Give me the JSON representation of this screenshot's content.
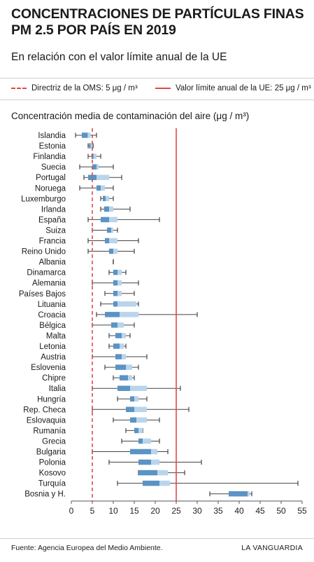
{
  "title": "CONCENTRACIONES DE PARTÍCULAS FINAS PM 2.5 POR PAÍS EN 2019",
  "subtitle": "En relación con el valor límite anual de la UE",
  "legend": {
    "who_label": "Directriz de la OMS: 5 μg / m³",
    "eu_label": "Valor límite anual de la UE: 25 μg / m³"
  },
  "colors": {
    "limit_line": "#e04848",
    "box_dark": "#5b93c4",
    "box_light": "#b9d5ec",
    "whisker": "#444444"
  },
  "source": "Fuente: Agencia Europea del Medio Ambiente.",
  "brand": "LA VANGUARDIA",
  "chart_data": {
    "type": "box",
    "title": "Concentración media de contaminación del aire (μg / m³)",
    "xlim": [
      0,
      55
    ],
    "xticks": [
      0,
      5,
      10,
      15,
      20,
      25,
      30,
      35,
      40,
      45,
      50,
      55
    ],
    "reference_lines": [
      {
        "value": 5,
        "label": "Directriz de la OMS: 5 μg / m³",
        "style": "dashed"
      },
      {
        "value": 25,
        "label": "Valor límite anual de la UE: 25 μg / m³",
        "style": "solid"
      }
    ],
    "categories": [
      "Islandia",
      "Estonia",
      "Finlandia",
      "Suecia",
      "Portugal",
      "Noruega",
      "Luxemburgo",
      "Irlanda",
      "España",
      "Suiza",
      "Francia",
      "Reino Unido",
      "Albania",
      "Dinamarca",
      "Alemania",
      "Países Bajos",
      "Lituania",
      "Croacia",
      "Bélgica",
      "Malta",
      "Letonia",
      "Austria",
      "Eslovenia",
      "Chipre",
      "Italia",
      "Hungría",
      "Rep. Checa",
      "Eslovaquia",
      "Rumanía",
      "Grecia",
      "Bulgaria",
      "Polonia",
      "Kosovo",
      "Turquía",
      "Bosnia y H."
    ],
    "boxes": [
      {
        "min": 1,
        "q1": 2.5,
        "median": 3.9,
        "q3": 4.6,
        "max": 6
      },
      {
        "min": 4,
        "q1": 4.2,
        "median": 4.6,
        "q3": 5,
        "max": 5.2
      },
      {
        "min": 4,
        "q1": 4.8,
        "median": 5.3,
        "q3": 6,
        "max": 7
      },
      {
        "min": 2,
        "q1": 5,
        "median": 6,
        "q3": 6.5,
        "max": 10
      },
      {
        "min": 3,
        "q1": 4,
        "median": 6,
        "q3": 9,
        "max": 12
      },
      {
        "min": 2,
        "q1": 6,
        "median": 7,
        "q3": 8,
        "max": 10
      },
      {
        "min": 7,
        "q1": 7.5,
        "median": 8.2,
        "q3": 9,
        "max": 10
      },
      {
        "min": 7,
        "q1": 7.8,
        "median": 9,
        "q3": 10,
        "max": 14
      },
      {
        "min": 4,
        "q1": 7,
        "median": 9,
        "q3": 11,
        "max": 21
      },
      {
        "min": 5,
        "q1": 8.5,
        "median": 9.5,
        "q3": 10,
        "max": 11
      },
      {
        "min": 4,
        "q1": 8,
        "median": 9,
        "q3": 11,
        "max": 16
      },
      {
        "min": 4,
        "q1": 9,
        "median": 10,
        "q3": 11,
        "max": 15
      },
      {
        "min": 10,
        "q1": 10,
        "median": 10,
        "q3": 10,
        "max": 10
      },
      {
        "min": 9,
        "q1": 10,
        "median": 11,
        "q3": 12,
        "max": 13
      },
      {
        "min": 5,
        "q1": 10,
        "median": 11,
        "q3": 12,
        "max": 16
      },
      {
        "min": 8,
        "q1": 10,
        "median": 11,
        "q3": 12,
        "max": 15
      },
      {
        "min": 7,
        "q1": 10,
        "median": 11,
        "q3": 15.5,
        "max": 16
      },
      {
        "min": 6,
        "q1": 8,
        "median": 11.5,
        "q3": 16,
        "max": 30
      },
      {
        "min": 5,
        "q1": 9.5,
        "median": 11,
        "q3": 12.5,
        "max": 15
      },
      {
        "min": 9,
        "q1": 10.5,
        "median": 12,
        "q3": 13,
        "max": 14
      },
      {
        "min": 9,
        "q1": 10,
        "median": 11.5,
        "q3": 12.5,
        "max": 13
      },
      {
        "min": 5,
        "q1": 10.5,
        "median": 12,
        "q3": 13,
        "max": 18
      },
      {
        "min": 8,
        "q1": 10.5,
        "median": 13,
        "q3": 14.5,
        "max": 16
      },
      {
        "min": 10,
        "q1": 11.5,
        "median": 13.5,
        "q3": 14.5,
        "max": 15
      },
      {
        "min": 5,
        "q1": 11,
        "median": 14,
        "q3": 18,
        "max": 26
      },
      {
        "min": 11,
        "q1": 14,
        "median": 15,
        "q3": 16,
        "max": 18
      },
      {
        "min": 5,
        "q1": 13,
        "median": 15,
        "q3": 18,
        "max": 28
      },
      {
        "min": 10,
        "q1": 14,
        "median": 15.5,
        "q3": 18,
        "max": 21
      },
      {
        "min": 13,
        "q1": 15,
        "median": 16,
        "q3": 17,
        "max": 17
      },
      {
        "min": 12,
        "q1": 16,
        "median": 17,
        "q3": 19,
        "max": 21
      },
      {
        "min": 5,
        "q1": 14,
        "median": 19,
        "q3": 20.5,
        "max": 23
      },
      {
        "min": 9,
        "q1": 16,
        "median": 19,
        "q3": 21,
        "max": 31
      },
      {
        "min": 16,
        "q1": 16,
        "median": 20.5,
        "q3": 23,
        "max": 27
      },
      {
        "min": 11,
        "q1": 17,
        "median": 21,
        "q3": 23.5,
        "max": 54
      },
      {
        "min": 33,
        "q1": 37.5,
        "median": 42,
        "q3": 42.5,
        "max": 43
      }
    ]
  }
}
